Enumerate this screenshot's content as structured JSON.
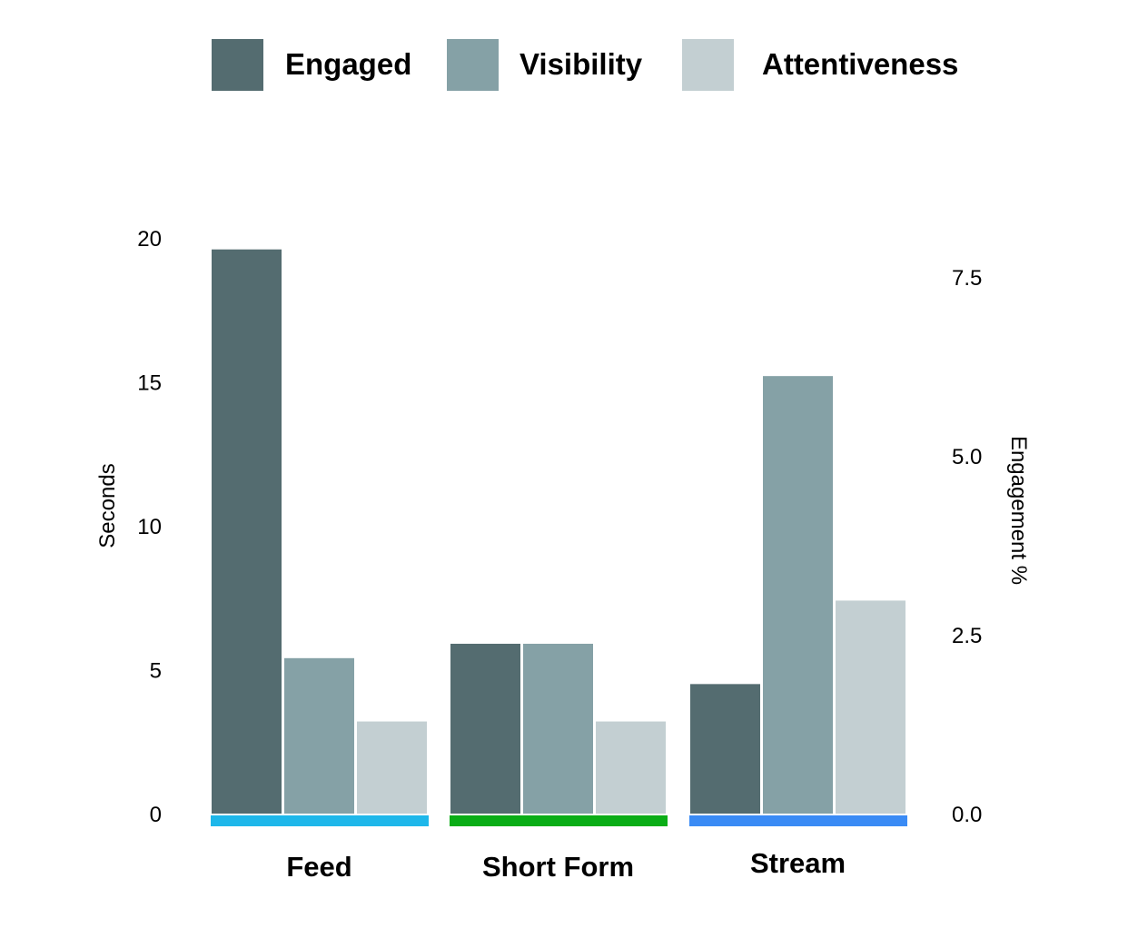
{
  "chart_data": {
    "type": "bar",
    "categories": [
      "Feed",
      "Short Form",
      "Stream"
    ],
    "category_colors": [
      "#1eb7ea",
      "#0aad16",
      "#3a8bf5"
    ],
    "series": [
      {
        "name": "Engaged",
        "color": "#546c70",
        "values": [
          19.6,
          5.9,
          4.5
        ]
      },
      {
        "name": "Visibility",
        "color": "#85a1a6",
        "values": [
          5.4,
          5.9,
          15.2
        ]
      },
      {
        "name": "Attentiveness",
        "color": "#c3cfd2",
        "values": [
          3.2,
          3.2,
          7.4
        ]
      }
    ],
    "yaxis_left": {
      "label": "Seconds",
      "ticks": [
        "0",
        "5",
        "10",
        "15",
        "20"
      ],
      "range": [
        0,
        20
      ]
    },
    "yaxis_right": {
      "label": "Engagement %",
      "ticks": [
        "0.0",
        "2.5",
        "5.0",
        "7.5"
      ],
      "range": [
        0,
        7.5
      ]
    },
    "legend_position": "top",
    "grid": false
  }
}
